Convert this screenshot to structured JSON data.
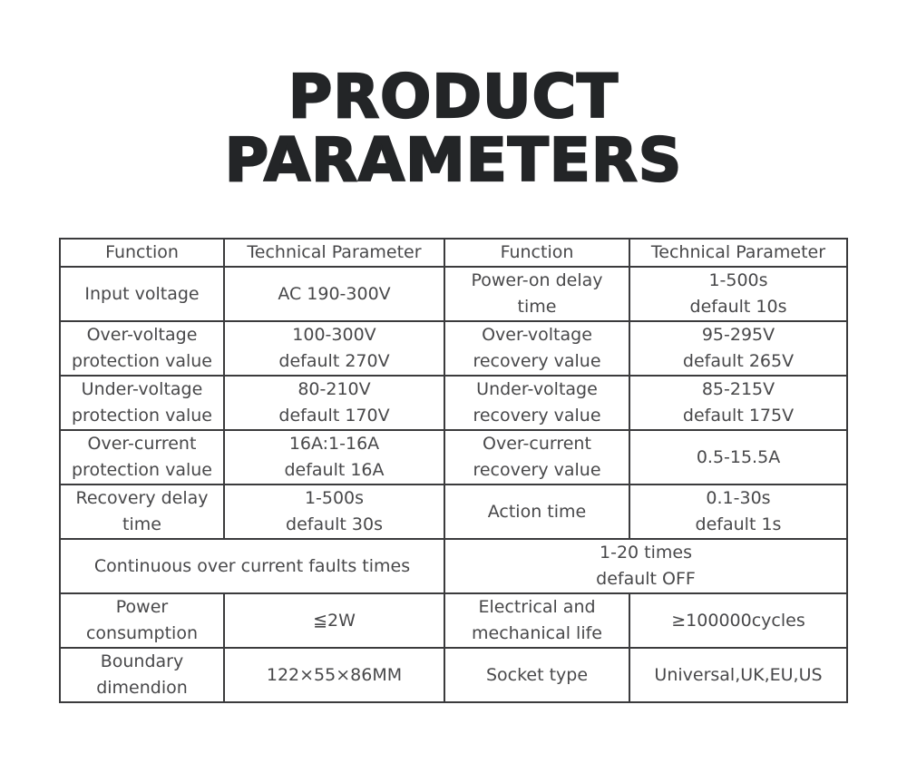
{
  "title": {
    "line1": "PRODUCT",
    "line2": "PARAMETERS"
  },
  "table": {
    "header": [
      "Function",
      "Technical Parameter",
      "Function",
      "Technical Parameter"
    ],
    "rows": [
      [
        "Input voltage",
        "AC 190-300V",
        "Power-on delay\ntime",
        "1-500s\ndefault 10s"
      ],
      [
        "Over-voltage\nprotection value",
        "100-300V\ndefault 270V",
        "Over-voltage\nrecovery value",
        "95-295V\ndefault 265V"
      ],
      [
        "Under-voltage\nprotection value",
        "80-210V\ndefault 170V",
        "Under-voltage\nrecovery value",
        "85-215V\ndefault 175V"
      ],
      [
        "Over-current\nprotection value",
        "16A:1-16A\ndefault 16A",
        "Over-current\nrecovery value",
        "0.5-15.5A"
      ],
      [
        "Recovery delay\ntime",
        "1-500s\ndefault 30s",
        "Action time",
        "0.1-30s\ndefault 1s"
      ]
    ],
    "merged_row": {
      "left": "Continuous over current faults times",
      "right": "1-20 times\ndefault OFF"
    },
    "bottom_rows": [
      [
        "Power\nconsumption",
        "≦2W",
        "Electrical and\nmechanical life",
        "≥100000cycles"
      ],
      [
        "Boundary\ndimendion",
        "122×55×86MM",
        "Socket type",
        "Universal,UK,EU,US"
      ]
    ]
  },
  "colors": {
    "background": "#ffffff",
    "title_text": "#232527",
    "table_border": "#3b3b3d",
    "table_text": "#48484a"
  }
}
